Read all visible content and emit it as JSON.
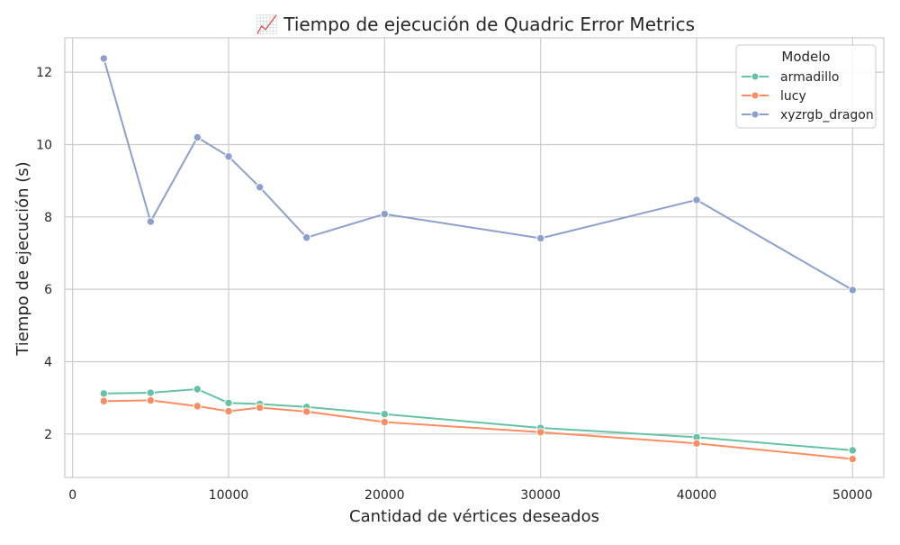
{
  "chart_data": {
    "type": "line",
    "title": "📈 Tiempo de ejecución de Quadric Error Metrics",
    "xlabel": "Cantidad de vértices deseados",
    "ylabel": "Tiempo de ejecución (s)",
    "xlim": [
      -500,
      52000
    ],
    "ylim": [
      0.8,
      12.95
    ],
    "xticks": [
      0,
      10000,
      20000,
      30000,
      40000,
      50000
    ],
    "yticks": [
      2,
      4,
      6,
      8,
      10,
      12
    ],
    "grid": true,
    "legend": {
      "title": "Modelo",
      "position": "top-right"
    },
    "x": [
      2000,
      5000,
      8000,
      10000,
      12000,
      15000,
      20000,
      30000,
      40000,
      50000
    ],
    "series": [
      {
        "name": "armadillo",
        "color": "#66c2a5",
        "values": [
          3.12,
          3.14,
          3.24,
          2.86,
          2.83,
          2.75,
          2.55,
          2.17,
          1.91,
          1.55
        ]
      },
      {
        "name": "lucy",
        "color": "#fc8d62",
        "values": [
          2.91,
          2.93,
          2.77,
          2.63,
          2.73,
          2.62,
          2.33,
          2.05,
          1.74,
          1.31
        ]
      },
      {
        "name": "xyzrgb_dragon",
        "color": "#8da0cb",
        "values": [
          12.38,
          7.87,
          10.2,
          9.67,
          8.82,
          7.43,
          8.08,
          7.41,
          8.47,
          5.98
        ]
      }
    ]
  }
}
